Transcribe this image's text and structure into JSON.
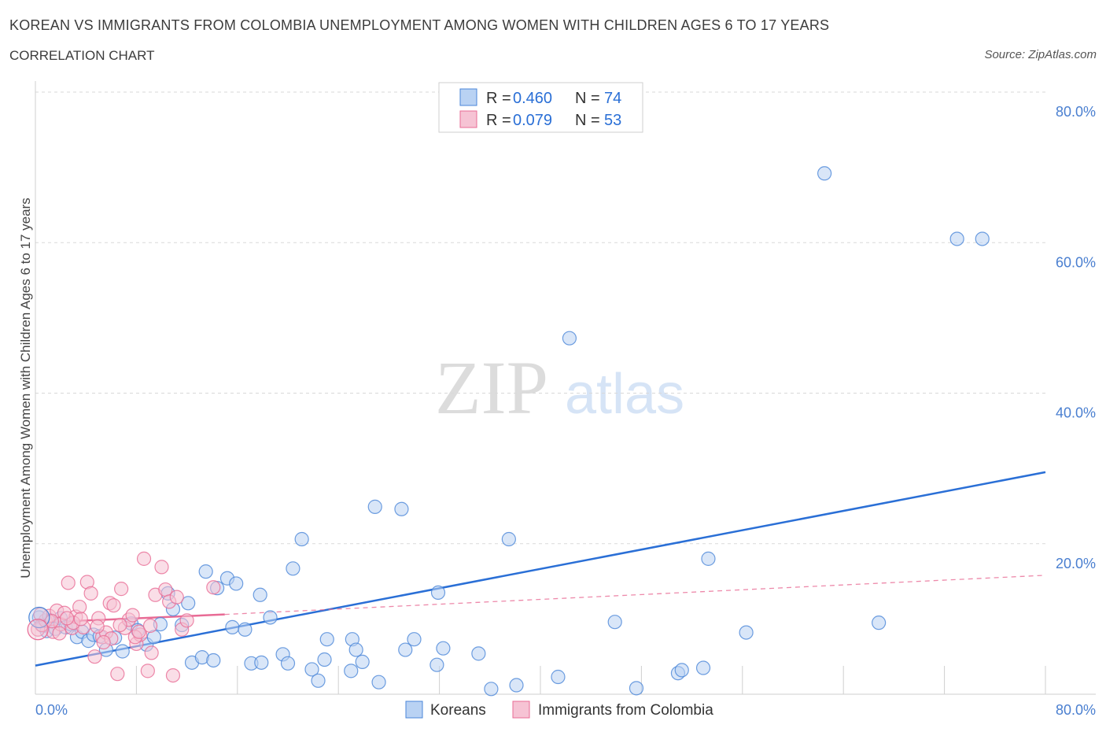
{
  "header": {
    "title": "KOREAN VS IMMIGRANTS FROM COLOMBIA UNEMPLOYMENT AMONG WOMEN WITH CHILDREN AGES 6 TO 17 YEARS",
    "subtitle": "CORRELATION CHART",
    "source": "Source: ZipAtlas.com"
  },
  "watermark": {
    "zip": "ZIP",
    "atlas": "atlas"
  },
  "colors": {
    "korean": "#4a86d8",
    "korean_fill": "#b9d2f3",
    "colombia": "#e86b95",
    "colombia_fill": "#f6c3d4",
    "grid": "#d9d9d9",
    "tick": "#4a7fd0"
  },
  "legend": {
    "korean": {
      "r_label": "R =",
      "r_value": "0.460",
      "n_label": "N =",
      "n_value": "74"
    },
    "colombia": {
      "r_label": "R =",
      "r_value": "0.079",
      "n_label": "N =",
      "n_value": "53"
    }
  },
  "chart_data": {
    "type": "scatter",
    "xlabel": "",
    "ylabel": "Unemployment Among Women with Children Ages 6 to 17 years",
    "xlim": [
      0,
      80
    ],
    "ylim": [
      0,
      80
    ],
    "x_tick_labels": [
      "0.0%",
      "80.0%"
    ],
    "y_ticks": [
      20,
      40,
      60,
      80
    ],
    "y_tick_labels": [
      "20.0%",
      "40.0%",
      "60.0%",
      "80.0%"
    ],
    "grid": "horizontal dashed",
    "legend_position": "top-center",
    "series": [
      {
        "name": "Koreans",
        "trend": {
          "x": [
            0,
            80
          ],
          "y": [
            3.8,
            29.5
          ],
          "style": "solid"
        },
        "points": [
          [
            0.3,
            10.2
          ],
          [
            0.6,
            9.1
          ],
          [
            0.9,
            8.4
          ],
          [
            1.2,
            9.8
          ],
          [
            1.6,
            8.7
          ],
          [
            2.0,
            10.1
          ],
          [
            2.4,
            8.9
          ],
          [
            2.8,
            9.3
          ],
          [
            3.3,
            7.6
          ],
          [
            3.7,
            8.3
          ],
          [
            4.2,
            7.1
          ],
          [
            4.6,
            7.9
          ],
          [
            5.1,
            7.7
          ],
          [
            5.6,
            5.9
          ],
          [
            6.3,
            7.5
          ],
          [
            6.9,
            5.7
          ],
          [
            7.6,
            9.4
          ],
          [
            8.1,
            8.5
          ],
          [
            8.8,
            6.6
          ],
          [
            9.4,
            7.6
          ],
          [
            9.9,
            9.3
          ],
          [
            10.5,
            13.4
          ],
          [
            10.9,
            11.3
          ],
          [
            11.6,
            9.2
          ],
          [
            12.1,
            12.1
          ],
          [
            12.4,
            4.2
          ],
          [
            13.2,
            4.9
          ],
          [
            13.5,
            16.3
          ],
          [
            14.1,
            4.5
          ],
          [
            14.4,
            14.1
          ],
          [
            15.2,
            15.4
          ],
          [
            15.6,
            8.9
          ],
          [
            15.9,
            14.7
          ],
          [
            16.6,
            8.6
          ],
          [
            17.1,
            4.1
          ],
          [
            17.8,
            13.2
          ],
          [
            17.9,
            4.2
          ],
          [
            18.6,
            10.2
          ],
          [
            19.6,
            5.3
          ],
          [
            20.0,
            4.1
          ],
          [
            20.4,
            16.7
          ],
          [
            21.1,
            20.6
          ],
          [
            21.9,
            3.3
          ],
          [
            22.4,
            1.8
          ],
          [
            22.9,
            4.6
          ],
          [
            23.1,
            7.3
          ],
          [
            25.0,
            3.1
          ],
          [
            25.1,
            7.3
          ],
          [
            25.4,
            5.9
          ],
          [
            25.9,
            4.3
          ],
          [
            26.9,
            24.9
          ],
          [
            27.2,
            1.6
          ],
          [
            29.0,
            24.6
          ],
          [
            29.3,
            5.9
          ],
          [
            30.0,
            7.3
          ],
          [
            31.8,
            3.9
          ],
          [
            31.9,
            13.5
          ],
          [
            32.3,
            6.1
          ],
          [
            35.1,
            5.4
          ],
          [
            36.1,
            0.7
          ],
          [
            37.5,
            20.6
          ],
          [
            38.1,
            1.2
          ],
          [
            41.4,
            2.3
          ],
          [
            42.3,
            47.3
          ],
          [
            45.9,
            9.6
          ],
          [
            47.6,
            0.8
          ],
          [
            50.9,
            2.8
          ],
          [
            51.2,
            3.2
          ],
          [
            52.9,
            3.5
          ],
          [
            53.3,
            18.0
          ],
          [
            56.3,
            8.2
          ],
          [
            62.5,
            69.2
          ],
          [
            66.8,
            9.5
          ],
          [
            73.0,
            60.5
          ],
          [
            75.0,
            60.5
          ]
        ]
      },
      {
        "name": "Immigrants from Colombia",
        "trend": {
          "x": [
            0,
            15
          ],
          "y": [
            9.5,
            10.6
          ],
          "style": "solid",
          "extension": {
            "x": [
              15,
              80
            ],
            "y": [
              10.6,
              15.8
            ],
            "style": "dashed"
          }
        },
        "points": [
          [
            0.2,
            8.6
          ],
          [
            0.5,
            9.2
          ],
          [
            0.8,
            9.8
          ],
          [
            1.1,
            10.4
          ],
          [
            1.4,
            8.3
          ],
          [
            1.7,
            11.1
          ],
          [
            2.0,
            9.3
          ],
          [
            2.3,
            10.8
          ],
          [
            2.6,
            14.8
          ],
          [
            2.9,
            8.8
          ],
          [
            3.2,
            10.3
          ],
          [
            3.5,
            11.6
          ],
          [
            3.8,
            8.9
          ],
          [
            4.1,
            14.9
          ],
          [
            4.4,
            13.4
          ],
          [
            4.7,
            5.0
          ],
          [
            5.0,
            10.1
          ],
          [
            5.3,
            7.6
          ],
          [
            5.6,
            8.2
          ],
          [
            5.9,
            12.1
          ],
          [
            6.2,
            11.8
          ],
          [
            6.5,
            2.7
          ],
          [
            6.8,
            14.0
          ],
          [
            7.1,
            8.8
          ],
          [
            7.4,
            9.9
          ],
          [
            7.7,
            10.5
          ],
          [
            8.0,
            6.7
          ],
          [
            8.3,
            7.9
          ],
          [
            8.6,
            18.0
          ],
          [
            8.9,
            3.1
          ],
          [
            9.2,
            5.5
          ],
          [
            9.5,
            13.2
          ],
          [
            10.0,
            16.9
          ],
          [
            10.3,
            13.9
          ],
          [
            10.6,
            12.3
          ],
          [
            10.9,
            2.5
          ],
          [
            11.2,
            12.9
          ],
          [
            11.6,
            8.6
          ],
          [
            12.0,
            9.8
          ],
          [
            14.1,
            14.2
          ],
          [
            6.0,
            7.4
          ],
          [
            7.9,
            7.6
          ],
          [
            3.0,
            9.5
          ],
          [
            1.9,
            8.1
          ],
          [
            1.3,
            9.7
          ],
          [
            2.5,
            10.1
          ],
          [
            0.4,
            10.6
          ],
          [
            4.9,
            9.0
          ],
          [
            6.7,
            9.2
          ],
          [
            8.2,
            8.3
          ],
          [
            9.1,
            9.1
          ],
          [
            5.4,
            6.9
          ],
          [
            3.6,
            10.0
          ]
        ]
      }
    ]
  },
  "bottom_legend": {
    "korean": "Koreans",
    "colombia": "Immigrants from Colombia"
  }
}
